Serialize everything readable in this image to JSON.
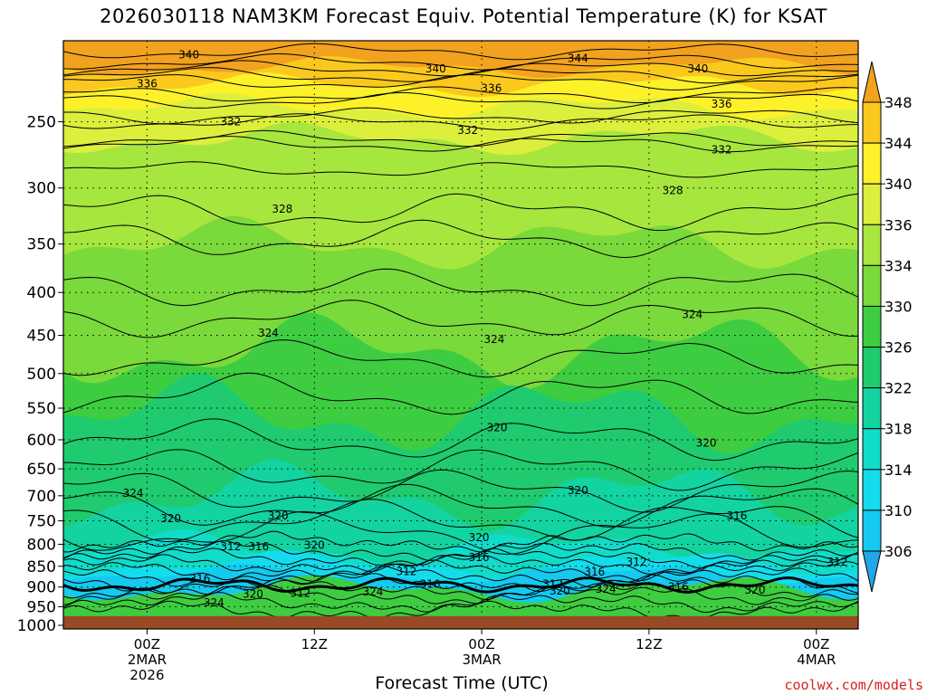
{
  "chart_data": {
    "type": "contour",
    "title": "2026030118 NAM3KM Forecast Equiv. Potential Temperature (K) for KSAT",
    "xlabel": "Forecast Time (UTC)",
    "ylabel": "",
    "y_axis": {
      "scale": "log-pressure",
      "reversed": true,
      "ticks": [
        250,
        300,
        350,
        400,
        450,
        500,
        550,
        600,
        650,
        700,
        750,
        800,
        850,
        900,
        950,
        1000
      ],
      "range": [
        200,
        1010
      ]
    },
    "x_axis": {
      "start": "2026-03-01 18Z",
      "end": "2026-03-04 03Z",
      "range_hours": [
        0,
        57
      ],
      "ticks": [
        {
          "hour": 6,
          "lines": [
            "00Z",
            "2MAR",
            "2026"
          ]
        },
        {
          "hour": 18,
          "lines": [
            "12Z"
          ]
        },
        {
          "hour": 30,
          "lines": [
            "00Z",
            "3MAR"
          ]
        },
        {
          "hour": 42,
          "lines": [
            "12Z"
          ]
        },
        {
          "hour": 54,
          "lines": [
            "00Z",
            "4MAR"
          ]
        }
      ]
    },
    "grid": "dotted-horizontal",
    "surface_fill": {
      "from_pressure": 975,
      "color": "#9a4a25"
    },
    "colorbar": {
      "orientation": "vertical",
      "position": "right",
      "labels": [
        348,
        344,
        340,
        336,
        334,
        330,
        326,
        322,
        318,
        314,
        310,
        306
      ],
      "colors": [
        "#f2a21e",
        "#fbc91e",
        "#fdf12a",
        "#dcef3c",
        "#a7e63f",
        "#7ad93b",
        "#3ecd41",
        "#1fcb6e",
        "#13d3a0",
        "#10dcc9",
        "#14dced",
        "#15c9ef",
        "#22a6e6"
      ]
    },
    "levels": [
      {
        "theta": 340,
        "pressure": 210
      },
      {
        "theta": 336,
        "pressure": 225
      },
      {
        "theta": 332,
        "pressure": 255
      },
      {
        "theta": 328,
        "pressure": 310
      },
      {
        "theta": 324,
        "pressure": 440
      },
      {
        "theta": 320,
        "pressure": 620
      },
      {
        "theta": 316,
        "pressure": 790
      },
      {
        "theta": 312,
        "pressure": 860
      }
    ],
    "contour_labels": [
      {
        "text": "340",
        "hour": 9,
        "pressure": 208
      },
      {
        "text": "336",
        "hour": 6,
        "pressure": 225
      },
      {
        "text": "332",
        "hour": 12,
        "pressure": 250
      },
      {
        "text": "340",
        "hour": 26.7,
        "pressure": 216
      },
      {
        "text": "344",
        "hour": 36.9,
        "pressure": 210
      },
      {
        "text": "340",
        "hour": 45.5,
        "pressure": 216
      },
      {
        "text": "336",
        "hour": 30.7,
        "pressure": 228
      },
      {
        "text": "336",
        "hour": 47.2,
        "pressure": 238
      },
      {
        "text": "332",
        "hour": 29,
        "pressure": 256
      },
      {
        "text": "332",
        "hour": 47.2,
        "pressure": 270
      },
      {
        "text": "328",
        "hour": 15.7,
        "pressure": 318
      },
      {
        "text": "328",
        "hour": 43.7,
        "pressure": 302
      },
      {
        "text": "324",
        "hour": 14.7,
        "pressure": 447
      },
      {
        "text": "324",
        "hour": 30.9,
        "pressure": 455
      },
      {
        "text": "324",
        "hour": 45.1,
        "pressure": 425
      },
      {
        "text": "320",
        "hour": 31.1,
        "pressure": 580
      },
      {
        "text": "320",
        "hour": 46.1,
        "pressure": 605
      },
      {
        "text": "324",
        "hour": 5,
        "pressure": 695
      },
      {
        "text": "320",
        "hour": 7.7,
        "pressure": 745
      },
      {
        "text": "320",
        "hour": 15.4,
        "pressure": 740
      },
      {
        "text": "320",
        "hour": 36.9,
        "pressure": 690
      },
      {
        "text": "316",
        "hour": 48.3,
        "pressure": 740
      },
      {
        "text": "320",
        "hour": 29.8,
        "pressure": 785
      },
      {
        "text": "320",
        "hour": 18,
        "pressure": 802
      },
      {
        "text": "312",
        "hour": 12,
        "pressure": 805
      },
      {
        "text": "316",
        "hour": 14,
        "pressure": 805
      },
      {
        "text": "316",
        "hour": 29.8,
        "pressure": 830
      },
      {
        "text": "312",
        "hour": 24.6,
        "pressure": 862
      },
      {
        "text": "316",
        "hour": 38.1,
        "pressure": 863
      },
      {
        "text": "312",
        "hour": 41.1,
        "pressure": 840
      },
      {
        "text": "312",
        "hour": 55.5,
        "pressure": 840
      },
      {
        "text": "316",
        "hour": 9.8,
        "pressure": 880
      },
      {
        "text": "316",
        "hour": 26.3,
        "pressure": 893
      },
      {
        "text": "312",
        "hour": 35.1,
        "pressure": 893
      },
      {
        "text": "316",
        "hour": 44.1,
        "pressure": 900
      },
      {
        "text": "320",
        "hour": 13.6,
        "pressure": 918
      },
      {
        "text": "312",
        "hour": 17,
        "pressure": 915
      },
      {
        "text": "324",
        "hour": 22.2,
        "pressure": 912
      },
      {
        "text": "320",
        "hour": 35.6,
        "pressure": 910
      },
      {
        "text": "324",
        "hour": 38.9,
        "pressure": 905
      },
      {
        "text": "320",
        "hour": 49.6,
        "pressure": 907
      },
      {
        "text": "324",
        "hour": 10.8,
        "pressure": 940
      }
    ]
  },
  "credit": "coolwx.com/models"
}
